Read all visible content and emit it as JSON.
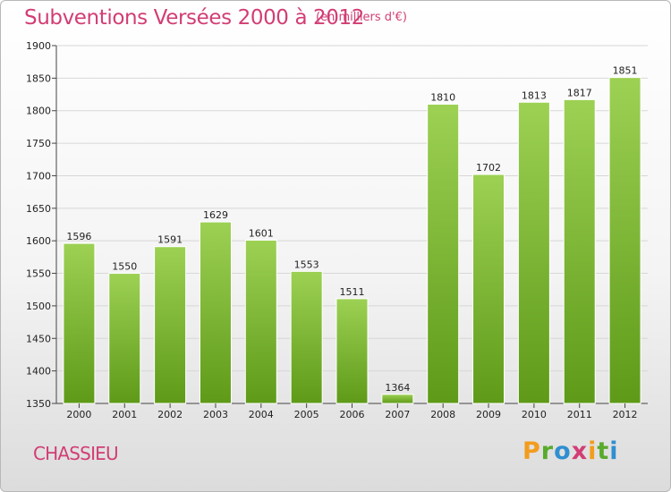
{
  "title": "Subventions Versées 2000 à 2012",
  "subtitle": "(en milliers d'€)",
  "commune": "CHASSIEU",
  "logo": {
    "letters": [
      "P",
      "r",
      "o",
      "x",
      "i",
      "t",
      "i"
    ],
    "colors": [
      "#f39c1d",
      "#5aaa2d",
      "#2f8fd0",
      "#d23d74",
      "#f39c1d",
      "#5aaa2d",
      "#2f8fd0"
    ]
  },
  "colors": {
    "bar_top": "#9dd154",
    "bar_bottom": "#5e9a18",
    "accent": "#d23d74"
  },
  "chart_data": {
    "type": "bar",
    "categories": [
      "2000",
      "2001",
      "2002",
      "2003",
      "2004",
      "2005",
      "2006",
      "2007",
      "2008",
      "2009",
      "2010",
      "2011",
      "2012"
    ],
    "values": [
      1596,
      1550,
      1591,
      1629,
      1601,
      1553,
      1511,
      1364,
      1810,
      1702,
      1813,
      1817,
      1851
    ],
    "ylim": [
      1350,
      1900
    ],
    "yticks": [
      1350,
      1400,
      1450,
      1500,
      1550,
      1600,
      1650,
      1700,
      1750,
      1800,
      1850,
      1900
    ],
    "grid": true
  }
}
